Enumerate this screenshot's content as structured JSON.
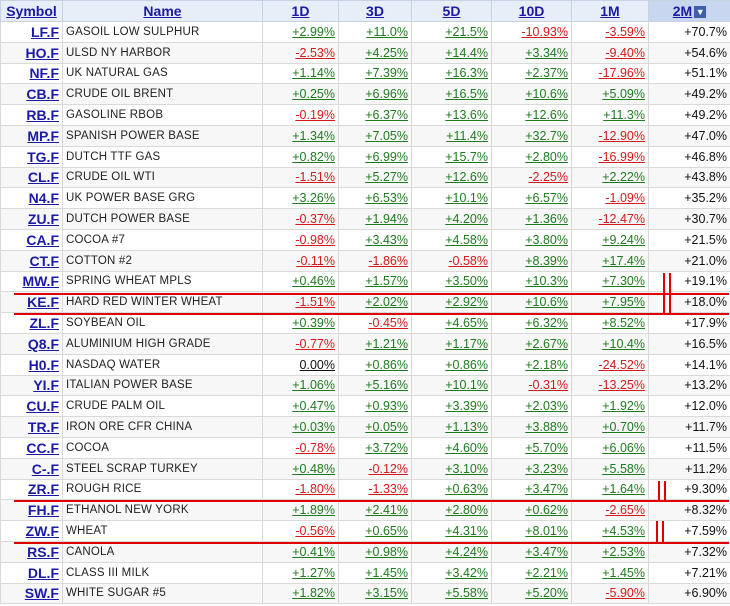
{
  "columns": {
    "symbol": "Symbol",
    "name": "Name",
    "d1": "1D",
    "d3": "3D",
    "d5": "5D",
    "d10": "10D",
    "m1": "1M",
    "m2": "2M"
  },
  "rows": [
    {
      "symbol": "LF.F",
      "name": "GASOIL LOW SULPHUR",
      "d1": "+2.99%",
      "d3": "+11.0%",
      "d5": "+21.5%",
      "d10": "-10.93%",
      "m1": "-3.59%",
      "m2": "+70.7%"
    },
    {
      "symbol": "HO.F",
      "name": "ULSD NY HARBOR",
      "d1": "-2.53%",
      "d3": "+4.25%",
      "d5": "+14.4%",
      "d10": "+3.34%",
      "m1": "-9.40%",
      "m2": "+54.6%"
    },
    {
      "symbol": "NF.F",
      "name": "UK NATURAL GAS",
      "d1": "+1.14%",
      "d3": "+7.39%",
      "d5": "+16.3%",
      "d10": "+2.37%",
      "m1": "-17.96%",
      "m2": "+51.1%"
    },
    {
      "symbol": "CB.F",
      "name": "CRUDE OIL BRENT",
      "d1": "+0.25%",
      "d3": "+6.96%",
      "d5": "+16.5%",
      "d10": "+10.6%",
      "m1": "+5.09%",
      "m2": "+49.2%"
    },
    {
      "symbol": "RB.F",
      "name": "GASOLINE RBOB",
      "d1": "-0.19%",
      "d3": "+6.37%",
      "d5": "+13.6%",
      "d10": "+12.6%",
      "m1": "+11.3%",
      "m2": "+49.2%"
    },
    {
      "symbol": "MP.F",
      "name": "SPANISH POWER BASE",
      "d1": "+1.34%",
      "d3": "+7.05%",
      "d5": "+11.4%",
      "d10": "+32.7%",
      "m1": "-12.90%",
      "m2": "+47.0%"
    },
    {
      "symbol": "TG.F",
      "name": "DUTCH TTF GAS",
      "d1": "+0.82%",
      "d3": "+6.99%",
      "d5": "+15.7%",
      "d10": "+2.80%",
      "m1": "-16.99%",
      "m2": "+46.8%"
    },
    {
      "symbol": "CL.F",
      "name": "CRUDE OIL WTI",
      "d1": "-1.51%",
      "d3": "+5.27%",
      "d5": "+12.6%",
      "d10": "-2.25%",
      "m1": "+2.22%",
      "m2": "+43.8%"
    },
    {
      "symbol": "N4.F",
      "name": "UK POWER BASE GRG",
      "d1": "+3.26%",
      "d3": "+6.53%",
      "d5": "+10.1%",
      "d10": "+6.57%",
      "m1": "-1.09%",
      "m2": "+35.2%"
    },
    {
      "symbol": "ZU.F",
      "name": "DUTCH POWER BASE",
      "d1": "-0.37%",
      "d3": "+1.94%",
      "d5": "+4.20%",
      "d10": "+1.36%",
      "m1": "-12.47%",
      "m2": "+30.7%"
    },
    {
      "symbol": "CA.F",
      "name": "COCOA #7",
      "d1": "-0.98%",
      "d3": "+3.43%",
      "d5": "+4.58%",
      "d10": "+3.80%",
      "m1": "+9.24%",
      "m2": "+21.5%"
    },
    {
      "symbol": "CT.F",
      "name": "COTTON #2",
      "d1": "-0.11%",
      "d3": "-1.86%",
      "d5": "-0.58%",
      "d10": "+8.39%",
      "m1": "+17.4%",
      "m2": "+21.0%"
    },
    {
      "symbol": "MW.F",
      "name": "SPRING WHEAT MPLS",
      "d1": "+0.46%",
      "d3": "+1.57%",
      "d5": "+3.50%",
      "d10": "+10.3%",
      "m1": "+7.30%",
      "m2": "+19.1%"
    },
    {
      "symbol": "KE.F",
      "name": "HARD RED WINTER WHEAT",
      "d1": "-1.51%",
      "d3": "+2.02%",
      "d5": "+2.92%",
      "d10": "+10.6%",
      "m1": "+7.95%",
      "m2": "+18.0%"
    },
    {
      "symbol": "ZL.F",
      "name": "SOYBEAN OIL",
      "d1": "+0.39%",
      "d3": "-0.45%",
      "d5": "+4.65%",
      "d10": "+6.32%",
      "m1": "+8.52%",
      "m2": "+17.9%"
    },
    {
      "symbol": "Q8.F",
      "name": "ALUMINIUM HIGH GRADE",
      "d1": "-0.77%",
      "d3": "+1.21%",
      "d5": "+1.17%",
      "d10": "+2.67%",
      "m1": "+10.4%",
      "m2": "+16.5%"
    },
    {
      "symbol": "H0.F",
      "name": "NASDAQ WATER",
      "d1": "0.00%",
      "d3": "+0.86%",
      "d5": "+0.86%",
      "d10": "+2.18%",
      "m1": "-24.52%",
      "m2": "+14.1%"
    },
    {
      "symbol": "YI.F",
      "name": "ITALIAN POWER BASE",
      "d1": "+1.06%",
      "d3": "+5.16%",
      "d5": "+10.1%",
      "d10": "-0.31%",
      "m1": "-13.25%",
      "m2": "+13.2%"
    },
    {
      "symbol": "CU.F",
      "name": "CRUDE PALM OIL",
      "d1": "+0.47%",
      "d3": "+0.93%",
      "d5": "+3.39%",
      "d10": "+2.03%",
      "m1": "+1.92%",
      "m2": "+12.0%"
    },
    {
      "symbol": "TR.F",
      "name": "IRON ORE CFR CHINA",
      "d1": "+0.03%",
      "d3": "+0.05%",
      "d5": "+1.13%",
      "d10": "+3.88%",
      "m1": "+0.70%",
      "m2": "+11.7%"
    },
    {
      "symbol": "CC.F",
      "name": "COCOA",
      "d1": "-0.78%",
      "d3": "+3.72%",
      "d5": "+4.60%",
      "d10": "+5.70%",
      "m1": "+6.06%",
      "m2": "+11.5%"
    },
    {
      "symbol": "C-.F",
      "name": "STEEL SCRAP TURKEY",
      "d1": "+0.48%",
      "d3": "-0.12%",
      "d5": "+3.10%",
      "d10": "+3.23%",
      "m1": "+5.58%",
      "m2": "+11.2%"
    },
    {
      "symbol": "ZR.F",
      "name": "ROUGH RICE",
      "d1": "-1.80%",
      "d3": "-1.33%",
      "d5": "+0.63%",
      "d10": "+3.47%",
      "m1": "+1.64%",
      "m2": "+9.30%"
    },
    {
      "symbol": "FH.F",
      "name": "ETHANOL NEW YORK",
      "d1": "+1.89%",
      "d3": "+2.41%",
      "d5": "+2.80%",
      "d10": "+0.62%",
      "m1": "-2.65%",
      "m2": "+8.32%"
    },
    {
      "symbol": "ZW.F",
      "name": "WHEAT",
      "d1": "-0.56%",
      "d3": "+0.65%",
      "d5": "+4.31%",
      "d10": "+8.01%",
      "m1": "+4.53%",
      "m2": "+7.59%"
    },
    {
      "symbol": "RS.F",
      "name": "CANOLA",
      "d1": "+0.41%",
      "d3": "+0.98%",
      "d5": "+4.24%",
      "d10": "+3.47%",
      "m1": "+2.53%",
      "m2": "+7.32%"
    },
    {
      "symbol": "DL.F",
      "name": "CLASS III MILK",
      "d1": "+1.27%",
      "d3": "+1.45%",
      "d5": "+3.42%",
      "d10": "+2.21%",
      "m1": "+1.45%",
      "m2": "+7.21%"
    },
    {
      "symbol": "SW.F",
      "name": "WHITE SUGAR #5",
      "d1": "+1.82%",
      "d3": "+3.15%",
      "d5": "+5.58%",
      "d10": "+5.20%",
      "m1": "-5.90%",
      "m2": "+6.90%"
    }
  ],
  "sort_icon": "chevron-down-icon",
  "colors": {
    "positive": "#1e7b1e",
    "negative": "#d61a1a",
    "annotation": "#e00000",
    "link": "#1a1aa6"
  }
}
